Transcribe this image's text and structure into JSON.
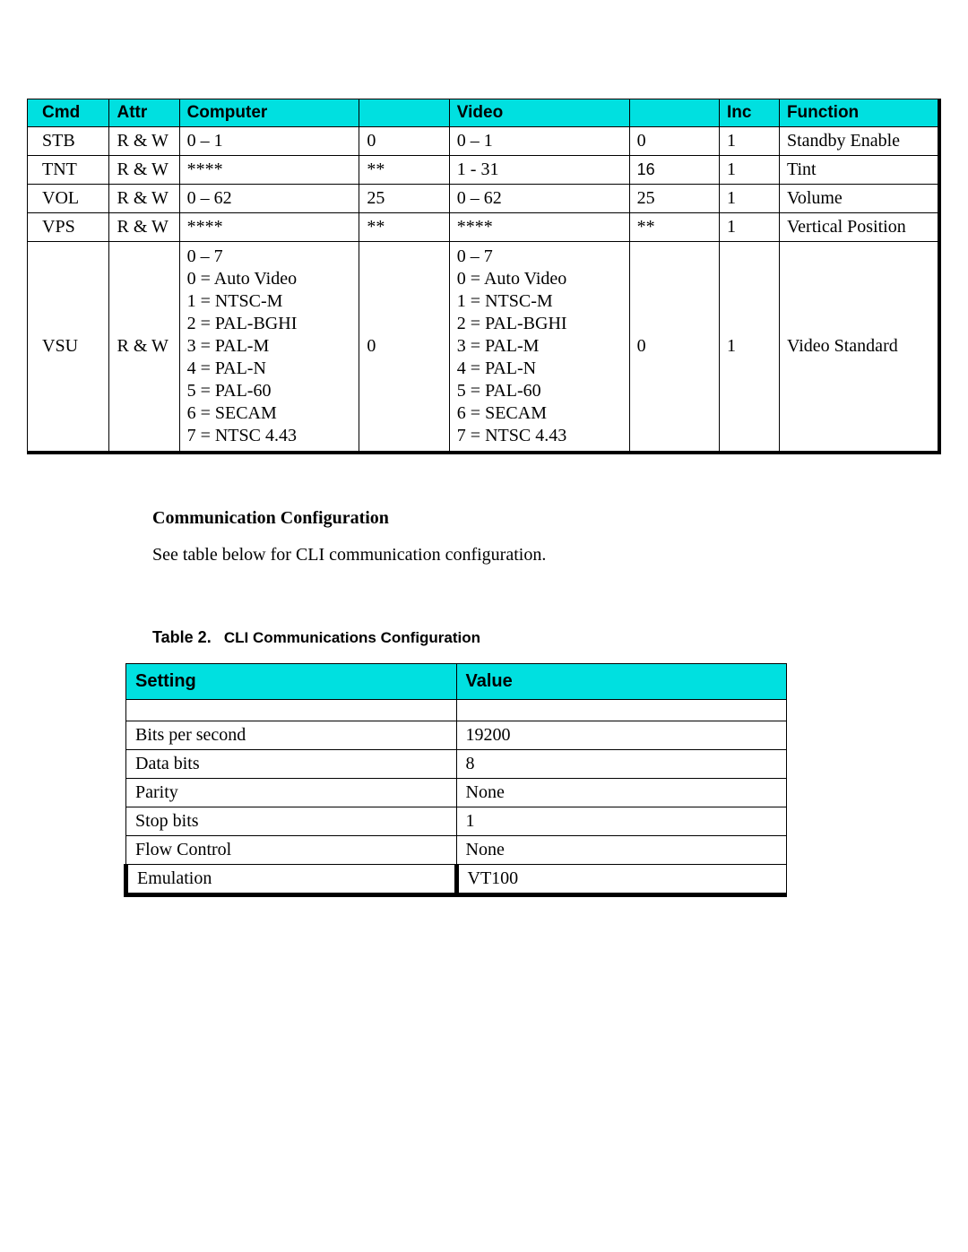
{
  "colors": {
    "header_bg": "#00e0e0",
    "border": "#000000",
    "text": "#000000",
    "background": "#ffffff"
  },
  "table1": {
    "type": "table",
    "columns": [
      "Cmd",
      "Attr",
      "Computer",
      "",
      "Video",
      "",
      "Inc",
      "Function"
    ],
    "rows": [
      {
        "cmd": "STB",
        "attr": "R & W",
        "computer": "0 – 1",
        "comp_def": "0",
        "video": "0 – 1",
        "video_def": "0",
        "inc": "1",
        "function": "Standby Enable"
      },
      {
        "cmd": "TNT",
        "attr": "R & W",
        "computer": "****",
        "comp_def": "**",
        "video": "1 - 31",
        "video_def": "16",
        "inc": "1",
        "function": "Tint"
      },
      {
        "cmd": "VOL",
        "attr": "R & W",
        "computer": "0 – 62",
        "comp_def": "25",
        "video": "0 – 62",
        "video_def": "25",
        "inc": "1",
        "function": "Volume"
      },
      {
        "cmd": "VPS",
        "attr": "R & W",
        "computer": "****",
        "comp_def": "**",
        "video": "****",
        "video_def": "**",
        "inc": "1",
        "function": "Vertical Position"
      },
      {
        "cmd": "VSU",
        "attr": "R & W",
        "computer": "0 – 7\n0 = Auto Video\n1 = NTSC-M\n2 = PAL-BGHI\n3 = PAL-M\n4 = PAL-N\n5 = PAL-60\n6 = SECAM\n7 = NTSC 4.43",
        "comp_def": "0",
        "video": "0 – 7\n0 = Auto Video\n1 = NTSC-M\n2 = PAL-BGHI\n3 = PAL-M\n4 = PAL-N\n5 = PAL-60\n6 = SECAM\n7 = NTSC 4.43",
        "video_def": "0",
        "inc": "1",
        "function": "Video Standard"
      }
    ]
  },
  "section": {
    "heading": "Communication Configuration",
    "text": "See table below for CLI communication configuration."
  },
  "table2_caption": {
    "label": "Table 2.",
    "title": "CLI Communications Configuration"
  },
  "table2": {
    "type": "table",
    "columns": [
      "Setting",
      "Value"
    ],
    "rows": [
      {
        "setting": "Bits per second",
        "value": "19200"
      },
      {
        "setting": "Data bits",
        "value": "8"
      },
      {
        "setting": "Parity",
        "value": "None"
      },
      {
        "setting": "Stop bits",
        "value": "1"
      },
      {
        "setting": "Flow Control",
        "value": "None"
      },
      {
        "setting": "Emulation",
        "value": "VT100"
      }
    ]
  }
}
